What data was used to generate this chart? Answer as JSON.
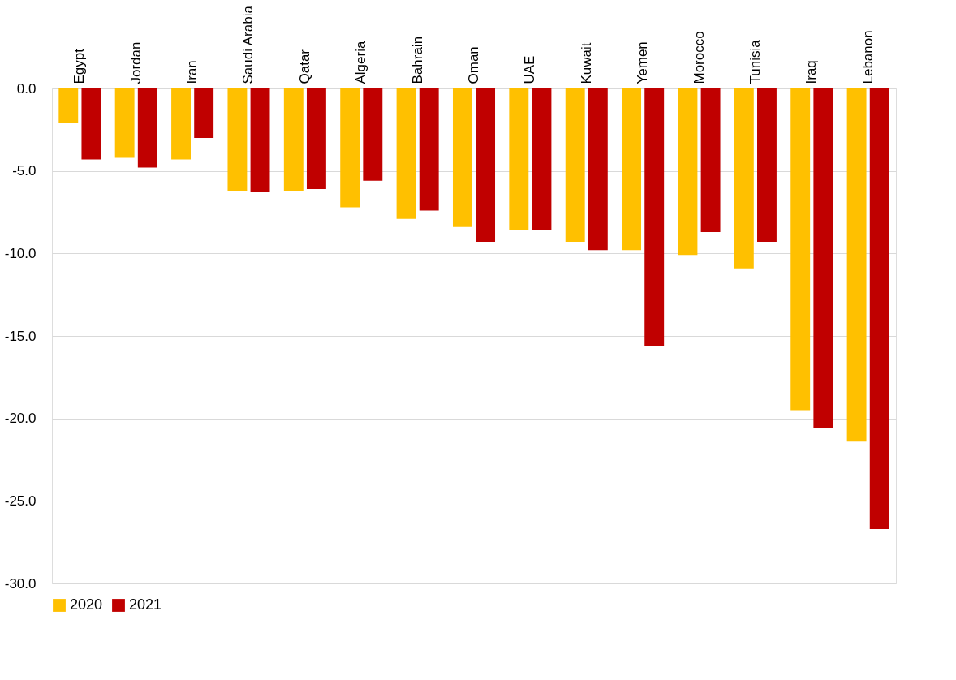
{
  "chart_data": {
    "type": "bar",
    "categories": [
      "Egypt",
      "Jordan",
      "Iran",
      "Saudi Arabia",
      "Qatar",
      "Algeria",
      "Bahrain",
      "Oman",
      "UAE",
      "Kuwait",
      "Yemen",
      "Morocco",
      "Tunisia",
      "Iraq",
      "Lebanon"
    ],
    "series": [
      {
        "name": "2020",
        "color": "#ffc000",
        "values": [
          -2.1,
          -4.2,
          -4.3,
          -6.2,
          -6.2,
          -7.2,
          -7.9,
          -8.4,
          -8.6,
          -9.3,
          -9.8,
          -10.1,
          -10.9,
          -19.5,
          -21.4
        ]
      },
      {
        "name": "2021",
        "color": "#c00000",
        "values": [
          -4.3,
          -4.8,
          -3.0,
          -6.3,
          -6.1,
          -5.6,
          -7.4,
          -9.3,
          -8.6,
          -9.8,
          -15.6,
          -8.7,
          -9.3,
          -20.6,
          -26.7
        ]
      }
    ],
    "ylim": [
      -30,
      0
    ],
    "yticks": [
      {
        "value": 0,
        "label": "0.0"
      },
      {
        "value": -5,
        "label": "-5.0"
      },
      {
        "value": -10,
        "label": "-10.0"
      },
      {
        "value": -15,
        "label": "-15.0"
      },
      {
        "value": -20,
        "label": "-20.0"
      },
      {
        "value": -25,
        "label": "-25.0"
      },
      {
        "value": -30,
        "label": "-30.0"
      }
    ],
    "grid": "y",
    "legend": "bottom"
  }
}
